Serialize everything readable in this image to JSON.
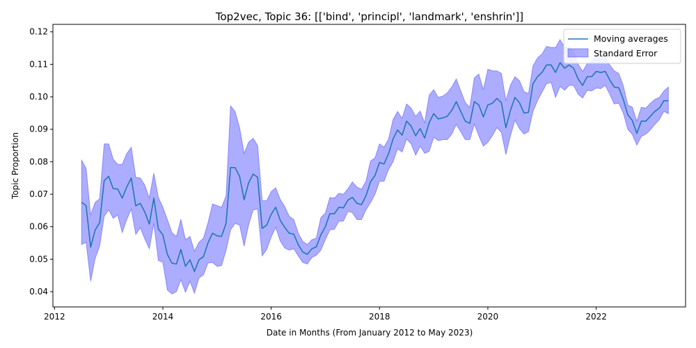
{
  "chart_data": {
    "type": "line",
    "title": "Top2vec, Topic 36: [['bind', 'principl', 'landmark', 'enshrin']]",
    "xlabel": "Date in Months (From January 2012 to May 2023)",
    "ylabel": "Topic Proportion",
    "xlim": [
      2011.97,
      2023.65
    ],
    "ylim": [
      0.0353,
      0.1223
    ],
    "x_ticks": [
      2012,
      2014,
      2016,
      2018,
      2020,
      2022
    ],
    "y_ticks": [
      0.04,
      0.05,
      0.06,
      0.07,
      0.08,
      0.09,
      0.1,
      0.11,
      0.12
    ],
    "y_tick_labels": [
      "0.04",
      "0.05",
      "0.06",
      "0.07",
      "0.08",
      "0.09",
      "0.10",
      "0.11",
      "0.12"
    ],
    "grid": false,
    "legend_position": "top-right",
    "colors": {
      "line": "#1f77b4",
      "band": "#0000ff",
      "band_alpha": 0.32,
      "legend_border": "#cccccc"
    },
    "x": [
      2012.5,
      2012.583,
      2012.667,
      2012.75,
      2012.833,
      2012.917,
      2013,
      2013.083,
      2013.167,
      2013.25,
      2013.333,
      2013.417,
      2013.5,
      2013.583,
      2013.667,
      2013.75,
      2013.833,
      2013.917,
      2014,
      2014.083,
      2014.167,
      2014.25,
      2014.333,
      2014.417,
      2014.5,
      2014.583,
      2014.667,
      2014.75,
      2014.833,
      2014.917,
      2015,
      2015.083,
      2015.167,
      2015.25,
      2015.333,
      2015.417,
      2015.5,
      2015.583,
      2015.667,
      2015.75,
      2015.833,
      2015.917,
      2016,
      2016.083,
      2016.167,
      2016.25,
      2016.333,
      2016.417,
      2016.5,
      2016.583,
      2016.667,
      2016.75,
      2016.833,
      2016.917,
      2017,
      2017.083,
      2017.167,
      2017.25,
      2017.333,
      2017.417,
      2017.5,
      2017.583,
      2017.667,
      2017.75,
      2017.833,
      2017.917,
      2018,
      2018.083,
      2018.167,
      2018.25,
      2018.333,
      2018.417,
      2018.5,
      2018.583,
      2018.667,
      2018.75,
      2018.833,
      2018.917,
      2019,
      2019.083,
      2019.167,
      2019.25,
      2019.333,
      2019.417,
      2019.5,
      2019.583,
      2019.667,
      2019.75,
      2019.833,
      2019.917,
      2020,
      2020.083,
      2020.167,
      2020.25,
      2020.333,
      2020.417,
      2020.5,
      2020.583,
      2020.667,
      2020.75,
      2020.833,
      2020.917,
      2021,
      2021.083,
      2021.167,
      2021.25,
      2021.333,
      2021.417,
      2021.5,
      2021.583,
      2021.667,
      2021.75,
      2021.833,
      2021.917,
      2022,
      2022.083,
      2022.167,
      2022.25,
      2022.333,
      2022.417,
      2022.5,
      2022.583,
      2022.667,
      2022.75,
      2022.833,
      2022.917,
      2023,
      2023.083,
      2023.167,
      2023.25,
      2023.333
    ],
    "series": [
      {
        "name": "Moving averages",
        "values": [
          0.0675,
          0.0665,
          0.0537,
          0.059,
          0.0612,
          0.0742,
          0.0755,
          0.0717,
          0.0716,
          0.0688,
          0.0722,
          0.075,
          0.0664,
          0.0672,
          0.0645,
          0.0608,
          0.0688,
          0.0593,
          0.0575,
          0.0515,
          0.0488,
          0.0485,
          0.053,
          0.0478,
          0.0498,
          0.0462,
          0.0498,
          0.0508,
          0.055,
          0.058,
          0.0572,
          0.057,
          0.061,
          0.0782,
          0.0782,
          0.0755,
          0.0683,
          0.0735,
          0.0762,
          0.0752,
          0.0595,
          0.0605,
          0.0638,
          0.066,
          0.062,
          0.0598,
          0.058,
          0.0577,
          0.0545,
          0.0522,
          0.0515,
          0.0532,
          0.0538,
          0.0575,
          0.06,
          0.064,
          0.064,
          0.066,
          0.0658,
          0.0682,
          0.069,
          0.0672,
          0.0668,
          0.0695,
          0.0738,
          0.0758,
          0.0798,
          0.0793,
          0.0825,
          0.087,
          0.0898,
          0.0882,
          0.0925,
          0.091,
          0.088,
          0.0902,
          0.0873,
          0.092,
          0.0948,
          0.0932,
          0.0935,
          0.094,
          0.0958,
          0.0985,
          0.0955,
          0.0925,
          0.0918,
          0.0985,
          0.0975,
          0.0938,
          0.0975,
          0.098,
          0.0995,
          0.0982,
          0.0905,
          0.0958,
          0.0998,
          0.0982,
          0.095,
          0.0952,
          0.104,
          0.1062,
          0.1075,
          0.1098,
          0.1098,
          0.1075,
          0.1105,
          0.1088,
          0.1098,
          0.1088,
          0.1055,
          0.1035,
          0.1062,
          0.1062,
          0.1078,
          0.1075,
          0.1078,
          0.1052,
          0.103,
          0.1028,
          0.0992,
          0.0945,
          0.0927,
          0.0887,
          0.0925,
          0.0925,
          0.094,
          0.0955,
          0.0965,
          0.0988,
          0.0988
        ]
      },
      {
        "name": "Standard Error",
        "lower": [
          0.0545,
          0.0552,
          0.0432,
          0.0502,
          0.054,
          0.0632,
          0.0652,
          0.0626,
          0.0636,
          0.0582,
          0.0622,
          0.0654,
          0.0576,
          0.0597,
          0.0562,
          0.0532,
          0.061,
          0.0496,
          0.049,
          0.0405,
          0.0393,
          0.04,
          0.0437,
          0.0398,
          0.0432,
          0.0395,
          0.0442,
          0.0452,
          0.0488,
          0.049,
          0.0478,
          0.048,
          0.0527,
          0.059,
          0.061,
          0.0605,
          0.054,
          0.0605,
          0.0652,
          0.0654,
          0.051,
          0.053,
          0.0568,
          0.0598,
          0.0556,
          0.0534,
          0.0528,
          0.0532,
          0.051,
          0.049,
          0.0485,
          0.0505,
          0.0512,
          0.0528,
          0.056,
          0.059,
          0.0592,
          0.0617,
          0.0617,
          0.0647,
          0.0643,
          0.0622,
          0.0622,
          0.0652,
          0.0674,
          0.07,
          0.074,
          0.074,
          0.0776,
          0.08,
          0.084,
          0.083,
          0.087,
          0.0855,
          0.082,
          0.0848,
          0.0826,
          0.0832,
          0.0875,
          0.0865,
          0.0868,
          0.0868,
          0.0885,
          0.0915,
          0.0892,
          0.0868,
          0.0868,
          0.0916,
          0.088,
          0.0848,
          0.086,
          0.088,
          0.0905,
          0.089,
          0.0822,
          0.088,
          0.0928,
          0.0902,
          0.0885,
          0.0893,
          0.0955,
          0.0988,
          0.1014,
          0.104,
          0.1044,
          0.0998,
          0.1032,
          0.102,
          0.1035,
          0.1035,
          0.1008,
          0.0996,
          0.102,
          0.1018,
          0.1027,
          0.1025,
          0.1035,
          0.1008,
          0.0978,
          0.098,
          0.095,
          0.09,
          0.0884,
          0.0851,
          0.0878,
          0.0885,
          0.0898,
          0.0915,
          0.093,
          0.0955,
          0.0948
        ]
      }
    ],
    "se_upper": [
      0.0805,
      0.078,
      0.0636,
      0.0675,
      0.0686,
      0.0855,
      0.0855,
      0.0808,
      0.0792,
      0.0792,
      0.0825,
      0.0845,
      0.0752,
      0.075,
      0.0728,
      0.0688,
      0.0765,
      0.069,
      0.066,
      0.0622,
      0.0582,
      0.057,
      0.0623,
      0.056,
      0.057,
      0.0525,
      0.0552,
      0.0565,
      0.0612,
      0.067,
      0.0665,
      0.066,
      0.0695,
      0.0972,
      0.0955,
      0.0905,
      0.0826,
      0.086,
      0.0872,
      0.085,
      0.068,
      0.068,
      0.0708,
      0.072,
      0.0684,
      0.0662,
      0.0632,
      0.0622,
      0.058,
      0.0555,
      0.0545,
      0.056,
      0.0565,
      0.0628,
      0.0642,
      0.069,
      0.0688,
      0.0703,
      0.07,
      0.0717,
      0.0738,
      0.0722,
      0.0716,
      0.074,
      0.0802,
      0.0812,
      0.0855,
      0.0845,
      0.087,
      0.093,
      0.0955,
      0.0934,
      0.0978,
      0.0965,
      0.094,
      0.0956,
      0.092,
      0.1005,
      0.1022,
      0.0998,
      0.1002,
      0.1012,
      0.103,
      0.1055,
      0.1018,
      0.0982,
      0.0968,
      0.1058,
      0.107,
      0.1022,
      0.1085,
      0.108,
      0.108,
      0.1072,
      0.0988,
      0.1036,
      0.1062,
      0.105,
      0.1016,
      0.101,
      0.1095,
      0.112,
      0.1132,
      0.1155,
      0.1152,
      0.1152,
      0.1176,
      0.1152,
      0.1152,
      0.114,
      0.11,
      0.1078,
      0.1102,
      0.1108,
      0.1128,
      0.1125,
      0.112,
      0.1098,
      0.108,
      0.1072,
      0.1035,
      0.0975,
      0.0968,
      0.0925,
      0.0968,
      0.0965,
      0.098,
      0.0992,
      0.0998,
      0.1018,
      0.103
    ]
  },
  "legend": {
    "line_label": "Moving averages",
    "band_label": "Standard Error"
  }
}
